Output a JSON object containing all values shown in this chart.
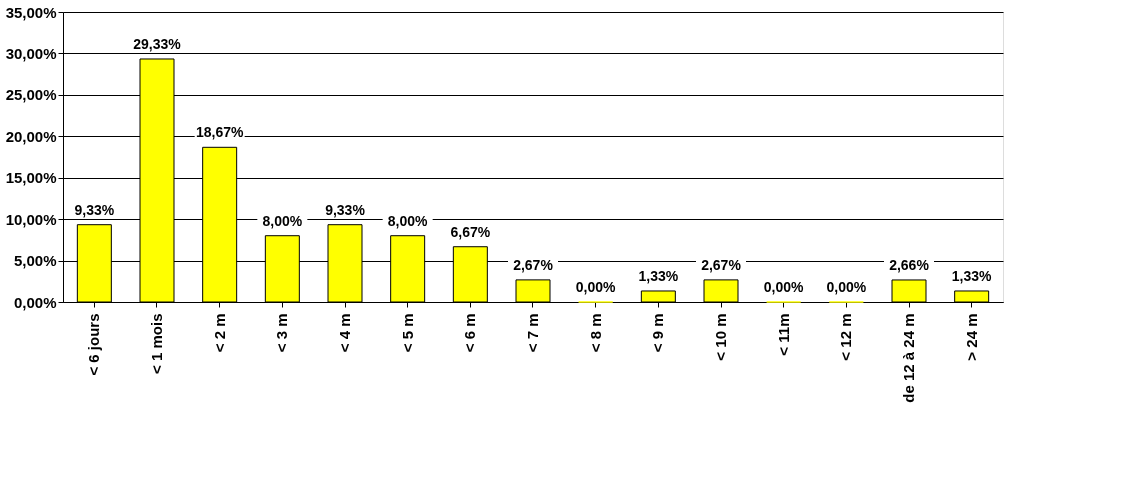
{
  "chart_data": {
    "type": "bar",
    "categories": [
      "< 6 jours",
      "< 1 mois",
      "< 2 m",
      "< 3 m",
      "< 4 m",
      "< 5 m",
      "< 6 m",
      "< 7 m",
      "< 8 m",
      "< 9 m",
      "< 10 m",
      "< 11m",
      "< 12 m",
      "de 12 à 24 m",
      "> 24 m"
    ],
    "values": [
      9.33,
      29.33,
      18.67,
      8.0,
      9.33,
      8.0,
      6.67,
      2.67,
      0,
      1.33,
      2.67,
      0,
      0,
      2.66,
      1.33
    ],
    "value_labels": [
      "9,33%",
      "29,33%",
      "18,67%",
      "8,00%",
      "9,33%",
      "8,00%",
      "6,67%",
      "2,67%",
      "0,00%",
      "1,33%",
      "2,67%",
      "0,00%",
      "0,00%",
      "2,66%",
      "1,33%"
    ],
    "color": "#ffff00",
    "ylim": [
      0,
      35
    ],
    "yticks": [
      {
        "value": 0,
        "label": "0,00%"
      },
      {
        "value": 5,
        "label": "5,00%"
      },
      {
        "value": 10,
        "label": "10,00%"
      },
      {
        "value": 15,
        "label": "15,00%"
      },
      {
        "value": 20,
        "label": "20,00%"
      },
      {
        "value": 25,
        "label": "25,00%"
      },
      {
        "value": 30,
        "label": "30,00%"
      },
      {
        "value": 35,
        "label": "35,00%"
      }
    ],
    "grid": "y"
  }
}
